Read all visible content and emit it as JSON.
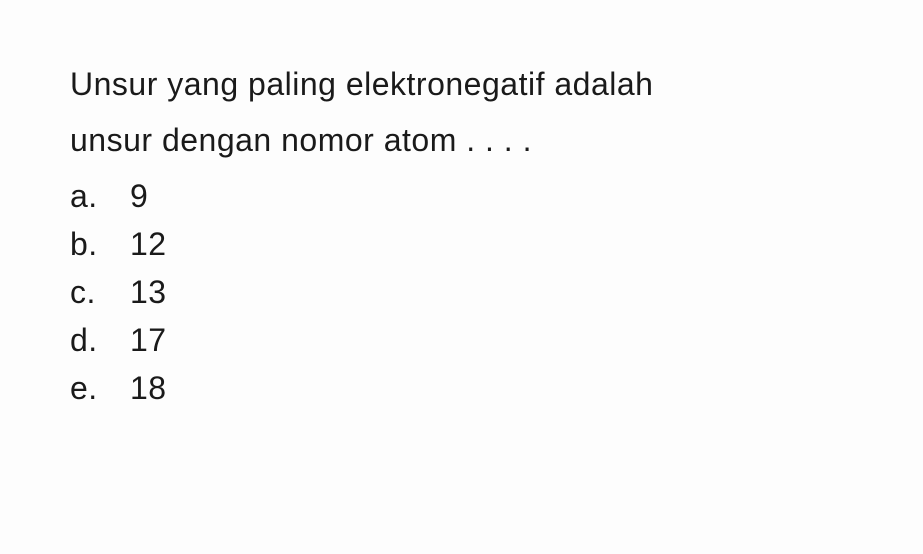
{
  "question": {
    "line1": "Unsur yang paling elektronegatif adalah",
    "line2": "unsur dengan nomor atom . . . ."
  },
  "options": [
    {
      "letter": "a.",
      "value": "9"
    },
    {
      "letter": "b.",
      "value": "12"
    },
    {
      "letter": "c.",
      "value": "13"
    },
    {
      "letter": "d.",
      "value": "17"
    },
    {
      "letter": "e.",
      "value": "18"
    }
  ],
  "styling": {
    "background_color": "#fdfdfd",
    "text_color": "#1a1a1a",
    "font_size": 32,
    "font_family": "Arial, Helvetica, sans-serif",
    "line_height": 1.5,
    "letter_spacing": 0.5,
    "option_letter_width": 60
  }
}
